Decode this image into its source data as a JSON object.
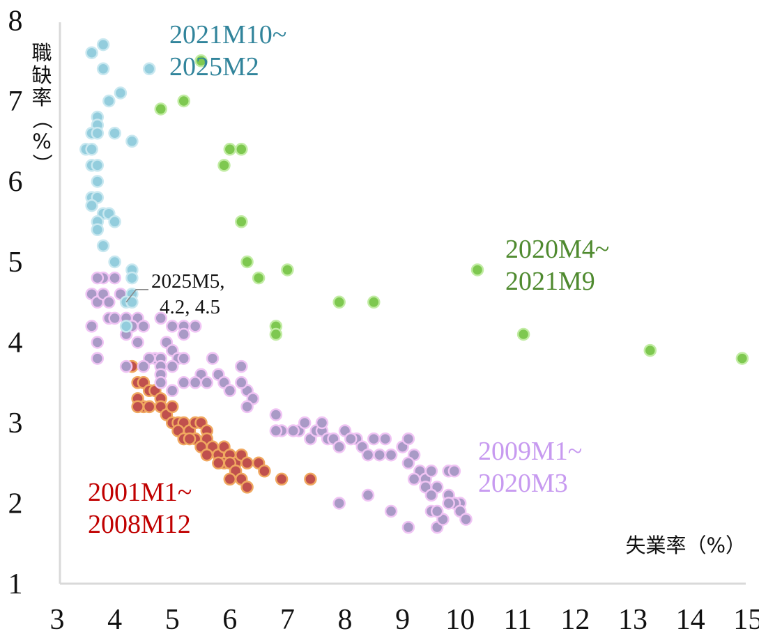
{
  "chart_data": {
    "type": "scatter",
    "xlabel": "失業率（%）",
    "ylabel": "職缺率（%）",
    "xlim": [
      3,
      15
    ],
    "ylim": [
      1,
      8
    ],
    "x_ticks": [
      "3",
      "4",
      "5",
      "6",
      "7",
      "8",
      "9",
      "10",
      "11",
      "12",
      "13",
      "14",
      "15"
    ],
    "y_ticks": [
      "1",
      "2",
      "3",
      "4",
      "5",
      "6",
      "7",
      "8"
    ],
    "grid": false,
    "legend": "none",
    "series": [
      {
        "label": "2001M1~2008M12",
        "color": "#c0504d",
        "stroke": "#f0a860",
        "points": [
          [
            4.3,
            3.7
          ],
          [
            4.4,
            3.5
          ],
          [
            4.5,
            3.5
          ],
          [
            4.6,
            3.4
          ],
          [
            4.7,
            3.4
          ],
          [
            4.8,
            3.3
          ],
          [
            4.4,
            3.3
          ],
          [
            4.5,
            3.2
          ],
          [
            4.6,
            3.2
          ],
          [
            4.4,
            3.2
          ],
          [
            4.8,
            3.2
          ],
          [
            4.9,
            3.1
          ],
          [
            5.0,
            3.2
          ],
          [
            5.0,
            3.0
          ],
          [
            5.1,
            3.0
          ],
          [
            5.2,
            3.0
          ],
          [
            5.1,
            2.9
          ],
          [
            5.3,
            2.9
          ],
          [
            5.4,
            3.0
          ],
          [
            5.5,
            3.0
          ],
          [
            5.6,
            2.9
          ],
          [
            5.4,
            2.8
          ],
          [
            5.2,
            2.8
          ],
          [
            5.3,
            2.8
          ],
          [
            5.6,
            2.8
          ],
          [
            5.5,
            2.7
          ],
          [
            5.7,
            2.7
          ],
          [
            5.8,
            2.6
          ],
          [
            5.9,
            2.7
          ],
          [
            6.0,
            2.6
          ],
          [
            5.9,
            2.5
          ],
          [
            6.1,
            2.5
          ],
          [
            6.2,
            2.6
          ],
          [
            6.0,
            2.5
          ],
          [
            6.3,
            2.5
          ],
          [
            6.1,
            2.4
          ],
          [
            6.2,
            2.3
          ],
          [
            6.0,
            2.3
          ],
          [
            6.3,
            2.2
          ],
          [
            6.5,
            2.5
          ],
          [
            6.6,
            2.4
          ],
          [
            6.9,
            2.3
          ],
          [
            7.4,
            2.3
          ],
          [
            5.6,
            2.6
          ],
          [
            5.8,
            2.5
          ]
        ]
      },
      {
        "label": "2009M1~2020M3",
        "color": "#a99ac6",
        "stroke": "#f0c4f4",
        "points": [
          [
            3.6,
            4.2
          ],
          [
            3.7,
            4.0
          ],
          [
            3.7,
            3.8
          ],
          [
            3.6,
            4.6
          ],
          [
            3.7,
            4.5
          ],
          [
            3.8,
            4.6
          ],
          [
            3.9,
            4.5
          ],
          [
            3.8,
            4.8
          ],
          [
            3.7,
            4.8
          ],
          [
            4.0,
            4.8
          ],
          [
            4.1,
            4.6
          ],
          [
            3.9,
            4.3
          ],
          [
            4.0,
            4.3
          ],
          [
            4.2,
            4.3
          ],
          [
            4.4,
            4.3
          ],
          [
            4.5,
            4.2
          ],
          [
            4.3,
            4.2
          ],
          [
            4.2,
            4.1
          ],
          [
            4.4,
            4.0
          ],
          [
            4.8,
            4.3
          ],
          [
            5.0,
            4.2
          ],
          [
            5.2,
            4.2
          ],
          [
            5.4,
            4.2
          ],
          [
            5.2,
            4.1
          ],
          [
            4.9,
            4.0
          ],
          [
            5.0,
            3.9
          ],
          [
            4.7,
            3.8
          ],
          [
            4.8,
            3.8
          ],
          [
            5.1,
            3.8
          ],
          [
            5.2,
            3.8
          ],
          [
            4.6,
            3.8
          ],
          [
            4.2,
            3.7
          ],
          [
            4.5,
            3.7
          ],
          [
            4.8,
            3.7
          ],
          [
            5.0,
            3.7
          ],
          [
            4.8,
            3.6
          ],
          [
            5.5,
            3.6
          ],
          [
            5.6,
            3.5
          ],
          [
            5.7,
            3.8
          ],
          [
            5.8,
            3.6
          ],
          [
            5.2,
            3.5
          ],
          [
            5.4,
            3.5
          ],
          [
            5.9,
            3.5
          ],
          [
            6.0,
            3.4
          ],
          [
            6.2,
            3.7
          ],
          [
            6.3,
            3.4
          ],
          [
            6.2,
            3.5
          ],
          [
            6.4,
            3.3
          ],
          [
            6.3,
            3.2
          ],
          [
            5.0,
            3.4
          ],
          [
            4.8,
            3.5
          ],
          [
            6.8,
            3.1
          ],
          [
            6.9,
            2.9
          ],
          [
            6.8,
            2.9
          ],
          [
            7.2,
            2.9
          ],
          [
            7.3,
            3.0
          ],
          [
            7.4,
            2.8
          ],
          [
            7.5,
            2.9
          ],
          [
            7.6,
            2.9
          ],
          [
            7.7,
            2.8
          ],
          [
            7.8,
            2.8
          ],
          [
            7.9,
            2.7
          ],
          [
            8.0,
            2.9
          ],
          [
            8.2,
            2.8
          ],
          [
            8.3,
            2.7
          ],
          [
            8.5,
            2.8
          ],
          [
            8.6,
            2.6
          ],
          [
            8.4,
            2.6
          ],
          [
            8.8,
            2.6
          ],
          [
            9.0,
            2.7
          ],
          [
            9.1,
            2.8
          ],
          [
            9.2,
            2.6
          ],
          [
            9.1,
            2.5
          ],
          [
            9.3,
            2.4
          ],
          [
            9.2,
            2.3
          ],
          [
            9.4,
            2.3
          ],
          [
            9.5,
            2.4
          ],
          [
            9.6,
            2.2
          ],
          [
            9.4,
            2.2
          ],
          [
            9.5,
            2.1
          ],
          [
            9.8,
            2.4
          ],
          [
            9.9,
            2.4
          ],
          [
            9.8,
            2.1
          ],
          [
            10.0,
            2.0
          ],
          [
            9.9,
            2.0
          ],
          [
            10.0,
            1.9
          ],
          [
            10.1,
            1.8
          ],
          [
            9.6,
            1.7
          ],
          [
            9.7,
            1.8
          ],
          [
            9.1,
            1.7
          ],
          [
            8.8,
            1.9
          ],
          [
            8.4,
            2.1
          ],
          [
            7.9,
            2.0
          ],
          [
            9.5,
            1.9
          ],
          [
            9.6,
            1.9
          ],
          [
            9.8,
            2.0
          ],
          [
            7.6,
            3.0
          ],
          [
            7.1,
            2.9
          ],
          [
            8.1,
            2.8
          ],
          [
            8.7,
            2.8
          ]
        ]
      },
      {
        "label": "2021M10~2025M2",
        "color": "#93cddd",
        "stroke": "#c9e8f0",
        "points": [
          [
            3.6,
            7.6
          ],
          [
            3.8,
            7.7
          ],
          [
            3.8,
            7.4
          ],
          [
            4.6,
            7.4
          ],
          [
            4.1,
            7.1
          ],
          [
            3.9,
            7.0
          ],
          [
            3.7,
            6.8
          ],
          [
            3.7,
            6.7
          ],
          [
            3.6,
            6.6
          ],
          [
            3.7,
            6.6
          ],
          [
            4.0,
            6.6
          ],
          [
            4.3,
            6.5
          ],
          [
            3.5,
            6.4
          ],
          [
            3.6,
            6.4
          ],
          [
            3.6,
            6.2
          ],
          [
            3.7,
            6.2
          ],
          [
            3.7,
            6.0
          ],
          [
            3.6,
            5.8
          ],
          [
            3.7,
            5.8
          ],
          [
            3.6,
            5.7
          ],
          [
            3.8,
            5.6
          ],
          [
            3.9,
            5.6
          ],
          [
            3.7,
            5.5
          ],
          [
            4.0,
            5.5
          ],
          [
            3.7,
            5.4
          ],
          [
            3.8,
            5.2
          ],
          [
            4.0,
            5.0
          ],
          [
            4.3,
            4.9
          ],
          [
            4.3,
            4.8
          ],
          [
            4.3,
            4.6
          ],
          [
            4.2,
            4.5
          ],
          [
            4.3,
            4.5
          ],
          [
            4.2,
            4.2
          ]
        ]
      },
      {
        "label": "2020M4~2021M9",
        "color": "#7ec850",
        "stroke": "#c2eca4",
        "points": [
          [
            5.5,
            7.5
          ],
          [
            4.8,
            6.9
          ],
          [
            5.2,
            7.0
          ],
          [
            6.0,
            6.4
          ],
          [
            6.2,
            6.4
          ],
          [
            5.9,
            6.2
          ],
          [
            6.2,
            5.5
          ],
          [
            6.3,
            5.0
          ],
          [
            6.5,
            4.8
          ],
          [
            7.0,
            4.9
          ],
          [
            10.3,
            4.9
          ],
          [
            7.9,
            4.5
          ],
          [
            8.5,
            4.5
          ],
          [
            6.8,
            4.2
          ],
          [
            6.8,
            4.1
          ],
          [
            11.1,
            4.1
          ],
          [
            13.3,
            3.9
          ],
          [
            14.9,
            3.8
          ]
        ]
      }
    ],
    "annotations": [
      {
        "text_lines": [
          "2021M10~",
          "2025M2"
        ],
        "color": "#31849b"
      },
      {
        "text_lines": [
          "2020M4~",
          "2021M9"
        ],
        "color": "#4f8a2f"
      },
      {
        "text_lines": [
          "2009M1~",
          "2020M3"
        ],
        "color": "#c79af0"
      },
      {
        "text_lines": [
          "2001M1~",
          "2008M12"
        ],
        "color": "#c00000"
      },
      {
        "text_lines": [
          "2025M5,",
          "4.2, 4.5"
        ],
        "color": "#111111",
        "point": [
          4.2,
          4.5
        ]
      }
    ]
  }
}
